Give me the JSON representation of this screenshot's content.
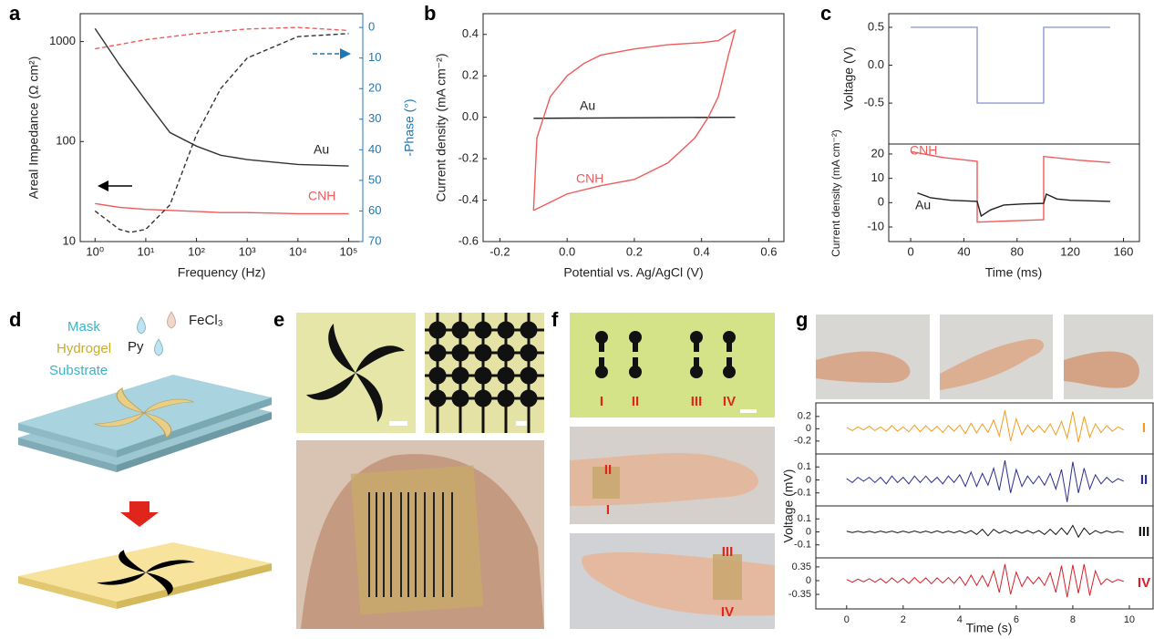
{
  "panel_labels": [
    "a",
    "b",
    "c",
    "d",
    "e",
    "f",
    "g"
  ],
  "figure": {
    "d": {
      "layers": [
        "Mask",
        "Hydrogel",
        "Substrate"
      ],
      "reagents": [
        "Py",
        "FeCl₃"
      ]
    },
    "f": {
      "electrodes": [
        "I",
        "II",
        "III",
        "IV"
      ],
      "forearm_top": [
        "II",
        "I"
      ],
      "forearm_bottom": [
        "III",
        "IV"
      ]
    }
  },
  "chart_data": [
    {
      "type": "line",
      "xscale": "log",
      "yscale": "log",
      "xlabel": "Frequency (Hz)",
      "ylabel": "Areal Impedance (Ω cm²)",
      "y2label": "-Phase (°)",
      "xlim": [
        0.51,
        190000
      ],
      "ylim": [
        10,
        1900
      ],
      "y2lim": [
        70,
        -4.5
      ],
      "xticks": [
        {
          "value": 1,
          "label": "10⁰"
        },
        {
          "value": 10,
          "label": "10¹"
        },
        {
          "value": 100,
          "label": "10²"
        },
        {
          "value": 1000,
          "label": "10³"
        },
        {
          "value": 10000,
          "label": "10⁴"
        },
        {
          "value": 100000,
          "label": "10⁵"
        }
      ],
      "yticks": [
        10,
        100,
        1000
      ],
      "y2ticks": [
        0,
        10,
        20,
        30,
        40,
        50,
        60,
        70
      ],
      "y2color": "#1f78b4",
      "series": [
        {
          "name": "Au",
          "color": "#333333",
          "x": [
            1,
            3,
            10,
            30,
            100,
            300,
            1000,
            10000,
            100000
          ],
          "values": [
            1350,
            590,
            257,
            123,
            90,
            73,
            66,
            59,
            57
          ]
        },
        {
          "name": "CNH",
          "color": "#ef5b5b",
          "x": [
            1,
            3,
            10,
            30,
            100,
            300,
            1000,
            10000,
            100000
          ],
          "values": [
            24,
            22,
            21,
            20.5,
            20,
            19.5,
            19.5,
            19,
            19
          ]
        },
        {
          "color": "#333333",
          "dash": true,
          "axis": "y2",
          "x": [
            1,
            3,
            5,
            10,
            30,
            100,
            300,
            1000,
            10000,
            100000
          ],
          "values": [
            60,
            66,
            67,
            66,
            58,
            35,
            20,
            10,
            3,
            2
          ]
        },
        {
          "color": "#ef5b5b",
          "dash": true,
          "axis": "y2",
          "x": [
            1,
            10,
            100,
            1000,
            10000,
            100000
          ],
          "values": [
            7,
            4,
            2,
            0.5,
            0,
            1
          ]
        }
      ]
    },
    {
      "type": "line",
      "xlabel": "Potential vs. Ag/AgCl (V)",
      "ylabel": "Current density (mA cm⁻²)",
      "xlim": [
        -0.25,
        0.645
      ],
      "ylim": [
        -0.6,
        0.5
      ],
      "xticks": [
        -0.2,
        {
          "value": 0,
          "label": "0.0"
        },
        0.2,
        0.4,
        0.6
      ],
      "yticks": [
        -0.6,
        -0.4,
        -0.2,
        {
          "value": 0,
          "label": "0.0"
        },
        0.2,
        0.4
      ],
      "series": [
        {
          "name": "Au",
          "color": "#222222",
          "x": [
            -0.1,
            0.5
          ],
          "values": [
            -0.005,
            0
          ]
        },
        {
          "name": "CNH",
          "color": "#ef5b5b",
          "x": [
            -0.1,
            -0.09,
            -0.05,
            0,
            0.05,
            0.1,
            0.2,
            0.3,
            0.4,
            0.45,
            0.5,
            0.48,
            0.45,
            0.42,
            0.38,
            0.3,
            0.2,
            0.1,
            0,
            -0.1
          ],
          "values": [
            -0.45,
            -0.1,
            0.1,
            0.2,
            0.26,
            0.3,
            0.33,
            0.35,
            0.36,
            0.37,
            0.42,
            0.3,
            0.1,
            0,
            -0.1,
            -0.22,
            -0.3,
            -0.33,
            -0.37,
            -0.45
          ]
        }
      ]
    },
    {
      "type": "line",
      "ylabel": "Voltage (V)",
      "xlim": [
        -16.5,
        172
      ],
      "ylim": [
        -1.04,
        0.68
      ],
      "yticks": [
        -0.5,
        {
          "value": 0,
          "label": "0.0"
        },
        0.5
      ],
      "series": [
        {
          "color": "#8e9ad6",
          "x": [
            0,
            50,
            50,
            100,
            100,
            150
          ],
          "values": [
            0.5,
            0.5,
            -0.5,
            -0.5,
            0.5,
            0.5
          ]
        }
      ]
    },
    {
      "type": "line",
      "xlabel": "Time (ms)",
      "ylabel": "Current density (mA cm⁻²)",
      "xlim": [
        -16.5,
        172
      ],
      "ylim": [
        -16,
        24.1
      ],
      "xticks": [
        0,
        40,
        80,
        120,
        160
      ],
      "yticks": [
        -10,
        0,
        10,
        20
      ],
      "series": [
        {
          "name": "CNH",
          "color": "#ef5b5b",
          "x": [
            0,
            25,
            50,
            50,
            75,
            100,
            100,
            125,
            150
          ],
          "values": [
            21,
            18.5,
            17,
            -8,
            -7.5,
            -7,
            19,
            17.5,
            16.5
          ]
        },
        {
          "name": "Au",
          "color": "#222222",
          "x": [
            5,
            15,
            30,
            50,
            53,
            60,
            70,
            85,
            100,
            102,
            110,
            120,
            150
          ],
          "values": [
            4,
            2,
            1,
            0.5,
            -5.5,
            -3,
            -1,
            -0.5,
            -0.3,
            3.5,
            1.5,
            1,
            0.5
          ]
        }
      ]
    },
    {
      "type": "line",
      "xlim": [
        -1.09,
        10.84
      ],
      "ylim": [
        -0.41,
        0.42
      ],
      "yticks": [
        -0.2,
        0,
        0.2
      ],
      "x": [
        0,
        0.2,
        0.4,
        0.6,
        0.8,
        1,
        1.2,
        1.4,
        1.6,
        1.8,
        2,
        2.2,
        2.4,
        2.6,
        2.8,
        3,
        3.2,
        3.4,
        3.6,
        3.8,
        4,
        4.2,
        4.4,
        4.6,
        4.8,
        5,
        5.2,
        5.4,
        5.6,
        5.8,
        6,
        6.2,
        6.4,
        6.6,
        6.8,
        7,
        7.2,
        7.4,
        7.6,
        7.8,
        8,
        8.2,
        8.4,
        8.6,
        8.8,
        9,
        9.2,
        9.4,
        9.6,
        9.8
      ],
      "series": [
        {
          "name": "I",
          "color": "#f39c1c",
          "values": [
            0.02,
            -0.03,
            0.03,
            -0.02,
            0.04,
            -0.03,
            0.03,
            -0.04,
            0.05,
            -0.04,
            0.03,
            -0.05,
            0.06,
            -0.05,
            0.05,
            -0.04,
            0.04,
            -0.06,
            0.05,
            -0.04,
            0.06,
            -0.08,
            0.09,
            -0.07,
            0.08,
            -0.06,
            0.14,
            -0.12,
            0.3,
            -0.2,
            0.16,
            -0.1,
            0.06,
            -0.05,
            0.05,
            -0.06,
            0.08,
            -0.1,
            0.12,
            -0.15,
            0.28,
            -0.22,
            0.2,
            -0.14,
            0.08,
            -0.06,
            0.05,
            -0.04,
            0.03,
            -0.02
          ]
        }
      ]
    },
    {
      "type": "line",
      "xlim": [
        -1.09,
        10.84
      ],
      "ylim": [
        -0.2,
        0.2
      ],
      "yticks": [
        -0.1,
        0,
        0.1
      ],
      "x": [
        0,
        0.2,
        0.4,
        0.6,
        0.8,
        1,
        1.2,
        1.4,
        1.6,
        1.8,
        2,
        2.2,
        2.4,
        2.6,
        2.8,
        3,
        3.2,
        3.4,
        3.6,
        3.8,
        4,
        4.2,
        4.4,
        4.6,
        4.8,
        5,
        5.2,
        5.4,
        5.6,
        5.8,
        6,
        6.2,
        6.4,
        6.6,
        6.8,
        7,
        7.2,
        7.4,
        7.6,
        7.8,
        8,
        8.2,
        8.4,
        8.6,
        8.8,
        9,
        9.2,
        9.4,
        9.6,
        9.8
      ],
      "series": [
        {
          "name": "II",
          "color": "#2b2f8f",
          "values": [
            0.01,
            -0.02,
            0.02,
            -0.01,
            0.02,
            -0.02,
            0.02,
            -0.03,
            0.03,
            -0.02,
            0.02,
            -0.03,
            0.03,
            -0.02,
            0.03,
            -0.02,
            0.02,
            -0.03,
            0.03,
            -0.02,
            0.04,
            -0.05,
            0.06,
            -0.05,
            0.05,
            -0.04,
            0.09,
            -0.08,
            0.15,
            -0.1,
            0.08,
            -0.05,
            0.03,
            -0.03,
            0.03,
            -0.04,
            0.05,
            -0.07,
            0.08,
            -0.17,
            0.14,
            -0.1,
            0.09,
            -0.07,
            0.04,
            -0.03,
            0.02,
            -0.02,
            0.01,
            -0.01
          ]
        }
      ]
    },
    {
      "type": "line",
      "ylabel": "Voltage (mV)",
      "xlim": [
        -1.09,
        10.84
      ],
      "ylim": [
        -0.2,
        0.2
      ],
      "yticks": [
        -0.1,
        0,
        0.1
      ],
      "x": [
        0,
        0.2,
        0.4,
        0.6,
        0.8,
        1,
        1.2,
        1.4,
        1.6,
        1.8,
        2,
        2.2,
        2.4,
        2.6,
        2.8,
        3,
        3.2,
        3.4,
        3.6,
        3.8,
        4,
        4.2,
        4.4,
        4.6,
        4.8,
        5,
        5.2,
        5.4,
        5.6,
        5.8,
        6,
        6.2,
        6.4,
        6.6,
        6.8,
        7,
        7.2,
        7.4,
        7.6,
        7.8,
        8,
        8.2,
        8.4,
        8.6,
        8.8,
        9,
        9.2,
        9.4,
        9.6,
        9.8
      ],
      "series": [
        {
          "name": "III",
          "color": "#111111",
          "values": [
            0.005,
            -0.005,
            0.005,
            -0.005,
            0.005,
            -0.006,
            0.006,
            -0.005,
            0.006,
            -0.007,
            0.006,
            -0.006,
            0.007,
            -0.006,
            0.006,
            -0.007,
            0.008,
            -0.007,
            0.006,
            -0.007,
            0.008,
            -0.01,
            0.01,
            -0.02,
            0.02,
            -0.03,
            0.02,
            -0.01,
            0.01,
            -0.01,
            0.01,
            -0.01,
            0.01,
            -0.01,
            0.01,
            -0.02,
            0.02,
            -0.02,
            0.03,
            -0.02,
            0.05,
            -0.04,
            0.03,
            -0.02,
            0.01,
            -0.01,
            0.008,
            -0.006,
            0.005,
            -0.004
          ]
        }
      ]
    },
    {
      "type": "line",
      "xlabel": "Time (s)",
      "xlim": [
        -1.09,
        10.84
      ],
      "ylim": [
        -0.72,
        0.58
      ],
      "yticks": [
        -0.35,
        0,
        0.35
      ],
      "xticks": [
        0,
        2,
        4,
        6,
        8,
        10
      ],
      "x": [
        0,
        0.2,
        0.4,
        0.6,
        0.8,
        1,
        1.2,
        1.4,
        1.6,
        1.8,
        2,
        2.2,
        2.4,
        2.6,
        2.8,
        3,
        3.2,
        3.4,
        3.6,
        3.8,
        4,
        4.2,
        4.4,
        4.6,
        4.8,
        5,
        5.2,
        5.4,
        5.6,
        5.8,
        6,
        6.2,
        6.4,
        6.6,
        6.8,
        7,
        7.2,
        7.4,
        7.6,
        7.8,
        8,
        8.2,
        8.4,
        8.6,
        8.8,
        9,
        9.2,
        9.4,
        9.6,
        9.8
      ],
      "series": [
        {
          "name": "IV",
          "color": "#d42029",
          "values": [
            0.03,
            -0.04,
            0.04,
            -0.03,
            0.05,
            -0.04,
            0.05,
            -0.06,
            0.07,
            -0.05,
            0.06,
            -0.07,
            0.08,
            -0.06,
            0.07,
            -0.08,
            0.07,
            -0.06,
            0.08,
            -0.07,
            0.1,
            -0.12,
            0.14,
            -0.12,
            0.13,
            -0.15,
            0.25,
            -0.3,
            0.42,
            -0.35,
            0.22,
            -0.15,
            0.1,
            -0.08,
            0.09,
            -0.12,
            0.2,
            -0.3,
            0.38,
            -0.42,
            0.4,
            -0.32,
            0.42,
            -0.38,
            0.25,
            -0.1,
            0.05,
            -0.04,
            0.03,
            -0.02
          ]
        }
      ]
    }
  ]
}
